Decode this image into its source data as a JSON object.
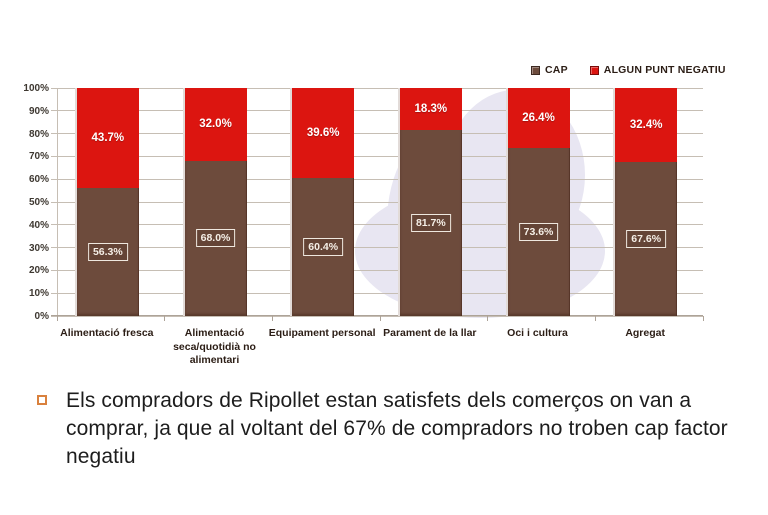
{
  "chart_data": {
    "type": "bar",
    "stacked": true,
    "orientation": "vertical",
    "title": "",
    "categories": [
      "Alimentació fresca",
      "Alimentació seca/quotidià no alimentari",
      "Equipament personal",
      "Parament de la llar",
      "Oci i cultura",
      "Agregat"
    ],
    "category_display": [
      "Alimentació fresca",
      "Alimentació\nseca/quotidià no\nalimentari",
      "Equipament personal",
      "Parament de la llar",
      "Oci i cultura",
      "Agregat"
    ],
    "series": [
      {
        "name": "CAP",
        "color": "#6D4B3C",
        "values": [
          56.3,
          68.0,
          60.4,
          81.7,
          73.6,
          67.6
        ],
        "labels": [
          "56.3%",
          "68.0%",
          "60.4%",
          "81.7%",
          "73.6%",
          "67.6%"
        ]
      },
      {
        "name": "ALGUN PUNT NEGATIU",
        "color": "#DC1510",
        "values": [
          43.7,
          32.0,
          39.6,
          18.3,
          26.4,
          32.4
        ],
        "labels": [
          "43.7%",
          "32.0%",
          "39.6%",
          "18.3%",
          "26.4%",
          "32.4%"
        ]
      }
    ],
    "y_axis": {
      "min": 0,
      "max": 100,
      "ticks": [
        "0%",
        "10%",
        "20%",
        "30%",
        "40%",
        "50%",
        "60%",
        "70%",
        "80%",
        "90%",
        "100%"
      ]
    },
    "legend": {
      "position": "top-right",
      "items": [
        "CAP",
        "ALGUN PUNT NEGATIU"
      ]
    },
    "grid": true
  },
  "colors": {
    "cap": "#6D4B3C",
    "negatiu": "#DC1510",
    "gridline": "#C6BEB4",
    "axis_text": "#3E3831",
    "category_text": "#2B1D15",
    "data_label_text": "#FFFFFF",
    "label_box_border": "#EFE8DF",
    "bullet_square": "#D9813D",
    "watermark": "#E8E6F2"
  },
  "note": {
    "bullet_text": "Els compradors de Ripollet estan satisfets dels comerços on van a\ncomprar, ja que al voltant del 67% de compradors no troben cap factor\nnegatiu"
  }
}
